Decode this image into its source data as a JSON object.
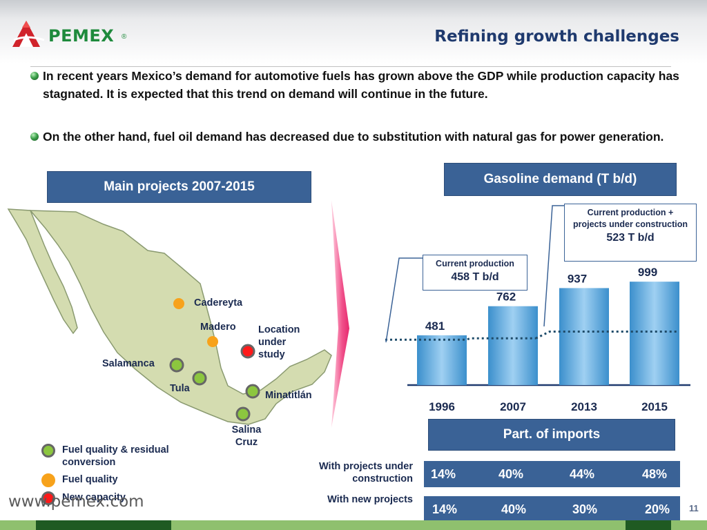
{
  "header": {
    "brand": "PEMEX",
    "registered": "®",
    "title": "Refining growth challenges"
  },
  "bullets": [
    "In recent years Mexico’s demand for automotive fuels has grown above the GDP while production capacity has stagnated. It is expected that this trend on demand will continue in the future.",
    "On the other hand, fuel oil demand has decreased due to substitution with natural gas for power generation."
  ],
  "projects": {
    "title": "Main projects 2007-2015",
    "sites": [
      "Cadereyta",
      "Madero",
      "Salamanca",
      "Tula",
      "Minatitlán",
      "Salina Cruz"
    ],
    "location_under_study": "Location under study",
    "legend": [
      {
        "label": "Fuel quality & residual conversion",
        "color": "#8cc63f"
      },
      {
        "label": "Fuel quality",
        "color": "#f7a21b"
      },
      {
        "label": "New capacity",
        "color": "#ff1a1a"
      }
    ]
  },
  "chart_data": {
    "type": "bar",
    "title": "Gasoline demand (T b/d)",
    "categories": [
      "1996",
      "2007",
      "2013",
      "2015"
    ],
    "values": [
      481,
      762,
      937,
      999
    ],
    "reference_lines": [
      {
        "label": "Current production",
        "value_label": "458 T b/d",
        "value": 458
      },
      {
        "label": "Current production + projects under construction",
        "value_label": "523 T b/d",
        "value": 523
      }
    ],
    "ylim": [
      0,
      1000
    ],
    "xlabel": "",
    "ylabel": "",
    "bar_color": "#5aa9dc"
  },
  "imports": {
    "title": "Part. of imports",
    "rows": [
      {
        "label": "With projects under construction",
        "values": [
          "14%",
          "40%",
          "44%",
          "48%"
        ]
      },
      {
        "label": "With new projects",
        "values": [
          "14%",
          "40%",
          "30%",
          "20%"
        ]
      }
    ]
  },
  "footer": {
    "url": "www.pemex.com",
    "page": "11"
  }
}
